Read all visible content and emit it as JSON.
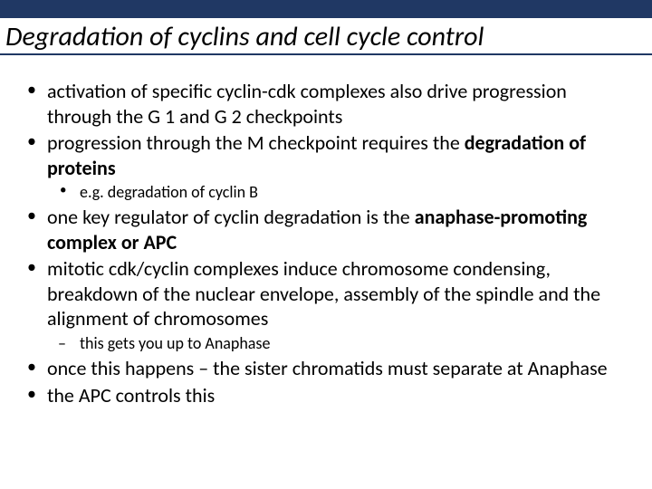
{
  "colors": {
    "topbar_bg": "#203864",
    "title_underline": "#203864",
    "page_bg": "#ffffff",
    "text": "#000000"
  },
  "typography": {
    "title_fontsize_pt": 23,
    "title_italic": true,
    "body_fontsize_pt": 17,
    "sub_fontsize_pt": 14,
    "font_family": "Calibri"
  },
  "title": "Degradation of cyclins and cell cycle control",
  "bullets": {
    "b1_a": "activation of specific cyclin-cdk complexes also drive progression through the G 1 and G 2 checkpoints",
    "b2_a": "progression through the M checkpoint requires the ",
    "b2_bold": "degradation of proteins",
    "b2_sub1": "e.g. degradation of cyclin B",
    "b3_a": "one key regulator of cyclin degradation is the ",
    "b3_bold": "anaphase-promoting complex or APC",
    "b4_a": "mitotic cdk/cyclin complexes induce chromosome condensing, breakdown of the nuclear envelope, assembly of the spindle and the alignment of chromosomes",
    "b4_sub1": "this gets you up to Anaphase",
    "b5_a": "once this happens – the sister chromatids must separate at Anaphase",
    "b6_a": "the APC controls this"
  }
}
